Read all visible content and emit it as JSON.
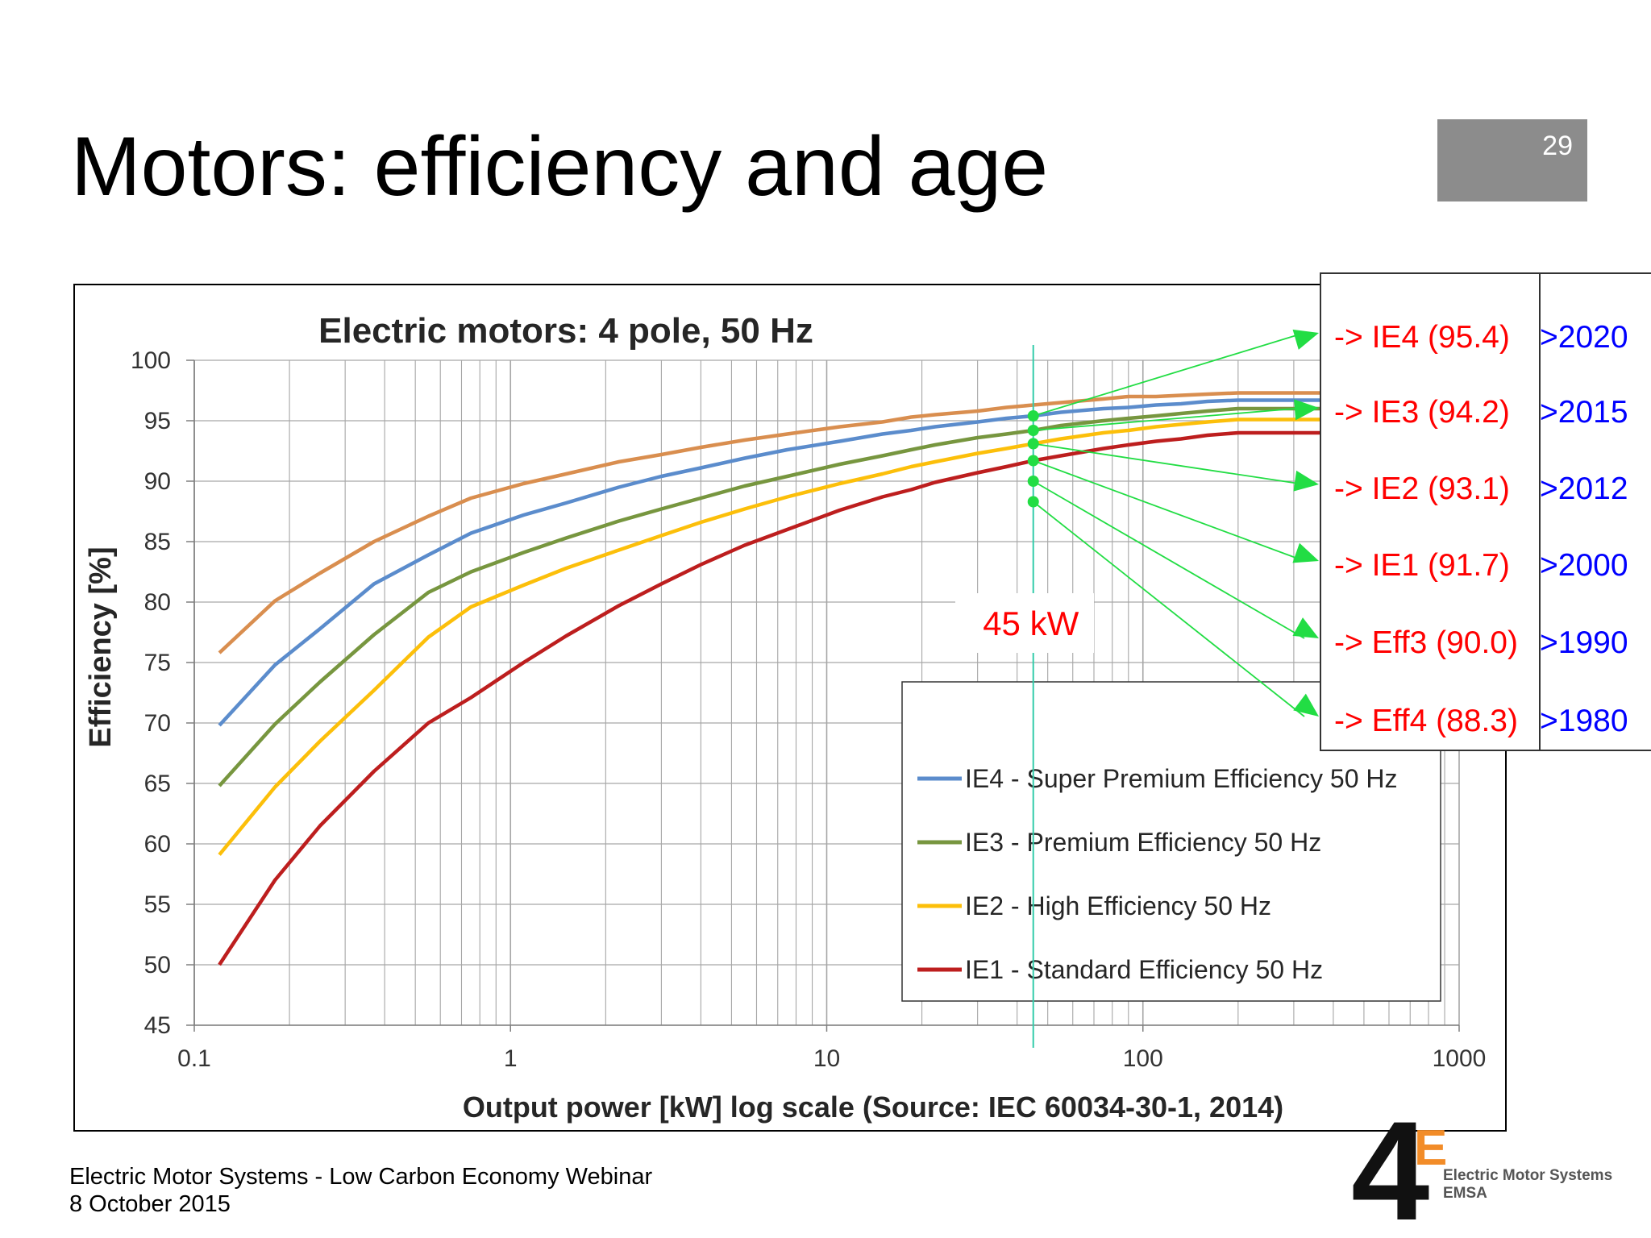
{
  "slide": {
    "title": "Motors: efficiency and age",
    "page_number": "29"
  },
  "footer": {
    "line1": "Electric Motor Systems - Low Carbon Economy Webinar",
    "line2": "8 October 2015"
  },
  "logo": {
    "mark": "4E",
    "line1": "Electric Motor Systems",
    "line2": "EMSA"
  },
  "colors": {
    "ie4": "#5b8ccc",
    "ie3": "#77963f",
    "ie2": "#fcbf0a",
    "ie1": "#bd1e1e",
    "above_ie4": "#d98e4f",
    "annotation_red": "#ff0000",
    "year_blue": "#0000ff",
    "pointer_green": "#22dd44",
    "marker_line": "#33ccaa"
  },
  "chart_data": {
    "type": "line",
    "title": "Electric motors: 4 pole, 50 Hz",
    "xlabel": "Output power [kW]   log scale (Source: IEC 60034-30-1, 2014)",
    "ylabel": "Efficiency   [%]",
    "xscale": "log",
    "xlim": [
      0.1,
      1000
    ],
    "ylim": [
      45,
      100
    ],
    "grid": true,
    "x_ticks": [
      "0.1",
      "1",
      "10",
      "100",
      "1000"
    ],
    "y_ticks": [
      "45",
      "50",
      "55",
      "60",
      "65",
      "70",
      "75",
      "80",
      "85",
      "90",
      "95",
      "100"
    ],
    "legend_position": "bottom-right",
    "series": [
      {
        "name": "",
        "color_key": "above_ie4",
        "x": [
          0.12,
          0.18,
          0.25,
          0.37,
          0.55,
          0.75,
          1.1,
          1.5,
          2.2,
          3,
          4,
          5.5,
          7.5,
          11,
          15,
          18.5,
          22,
          30,
          37,
          45,
          55,
          75,
          90,
          110,
          132,
          160,
          200,
          250,
          315,
          355,
          400
        ],
        "y": [
          75.8,
          80.1,
          82.4,
          85.0,
          87.1,
          88.6,
          89.8,
          90.6,
          91.6,
          92.2,
          92.8,
          93.4,
          93.9,
          94.5,
          94.9,
          95.3,
          95.5,
          95.8,
          96.1,
          96.3,
          96.5,
          96.8,
          97.0,
          97.0,
          97.1,
          97.2,
          97.3,
          97.3,
          97.3,
          97.3,
          97.3
        ]
      },
      {
        "name": "IE4 - Super Premium Efficiency 50 Hz",
        "color_key": "ie4",
        "x": [
          0.12,
          0.18,
          0.25,
          0.37,
          0.55,
          0.75,
          1.1,
          1.5,
          2.2,
          3,
          4,
          5.5,
          7.5,
          11,
          15,
          18.5,
          22,
          30,
          37,
          45,
          55,
          75,
          90,
          110,
          132,
          160,
          200,
          250,
          315,
          355,
          400
        ],
        "y": [
          69.8,
          74.8,
          77.8,
          81.5,
          83.9,
          85.7,
          87.2,
          88.2,
          89.5,
          90.4,
          91.1,
          91.9,
          92.6,
          93.3,
          93.9,
          94.2,
          94.5,
          94.9,
          95.2,
          95.4,
          95.7,
          96.0,
          96.1,
          96.3,
          96.4,
          96.6,
          96.7,
          96.7,
          96.7,
          96.7,
          96.7
        ]
      },
      {
        "name": "IE3 - Premium Efficiency 50 Hz",
        "color_key": "ie3",
        "x": [
          0.12,
          0.18,
          0.25,
          0.37,
          0.55,
          0.75,
          1.1,
          1.5,
          2.2,
          3,
          4,
          5.5,
          7.5,
          11,
          15,
          18.5,
          22,
          30,
          37,
          45,
          55,
          75,
          90,
          110,
          132,
          160,
          200,
          250,
          315,
          355,
          400
        ],
        "y": [
          64.8,
          69.9,
          73.4,
          77.3,
          80.8,
          82.5,
          84.1,
          85.3,
          86.7,
          87.7,
          88.6,
          89.6,
          90.4,
          91.4,
          92.1,
          92.6,
          93.0,
          93.6,
          93.9,
          94.2,
          94.6,
          95.0,
          95.2,
          95.4,
          95.6,
          95.8,
          96.0,
          96.0,
          96.0,
          96.0,
          96.0
        ]
      },
      {
        "name": "IE2 - High Efficiency 50 Hz",
        "color_key": "ie2",
        "x": [
          0.12,
          0.18,
          0.25,
          0.37,
          0.55,
          0.75,
          1.1,
          1.5,
          2.2,
          3,
          4,
          5.5,
          7.5,
          11,
          15,
          18.5,
          22,
          30,
          37,
          45,
          55,
          75,
          90,
          110,
          132,
          160,
          200,
          250,
          315,
          355,
          400
        ],
        "y": [
          59.1,
          64.7,
          68.5,
          72.7,
          77.1,
          79.6,
          81.4,
          82.8,
          84.3,
          85.5,
          86.6,
          87.7,
          88.7,
          89.8,
          90.6,
          91.2,
          91.6,
          92.3,
          92.7,
          93.1,
          93.5,
          94.0,
          94.2,
          94.5,
          94.7,
          94.9,
          95.1,
          95.1,
          95.1,
          95.1,
          95.1
        ]
      },
      {
        "name": "IE1 - Standard Efficiency 50 Hz",
        "color_key": "ie1",
        "x": [
          0.12,
          0.18,
          0.25,
          0.37,
          0.55,
          0.75,
          1.1,
          1.5,
          2.2,
          3,
          4,
          5.5,
          7.5,
          11,
          15,
          18.5,
          22,
          30,
          37,
          45,
          55,
          75,
          90,
          110,
          132,
          160,
          200,
          250,
          315,
          355,
          400
        ],
        "y": [
          50.0,
          57.0,
          61.5,
          66.0,
          70.0,
          72.1,
          75.0,
          77.2,
          79.7,
          81.5,
          83.1,
          84.7,
          86.0,
          87.6,
          88.7,
          89.3,
          89.9,
          90.7,
          91.2,
          91.7,
          92.1,
          92.7,
          93.0,
          93.3,
          93.5,
          93.8,
          94.0,
          94.0,
          94.0,
          94.0,
          94.0
        ]
      }
    ],
    "marker": {
      "x": 45,
      "label": "45 kW",
      "points_y": [
        95.4,
        94.2,
        93.1,
        91.7,
        90.0,
        88.3
      ]
    },
    "annotations": [
      {
        "label": "-> IE4 (95.4)",
        "year": ">2020"
      },
      {
        "label": "-> IE3 (94.2)",
        "year": ">2015"
      },
      {
        "label": "-> IE2 (93.1)",
        "year": ">2012"
      },
      {
        "label": "-> IE1 (91.7)",
        "year": ">2000"
      },
      {
        "label": "-> Eff3 (90.0)",
        "year": ">1990"
      },
      {
        "label": "-> Eff4 (88.3)",
        "year": ">1980"
      }
    ]
  }
}
